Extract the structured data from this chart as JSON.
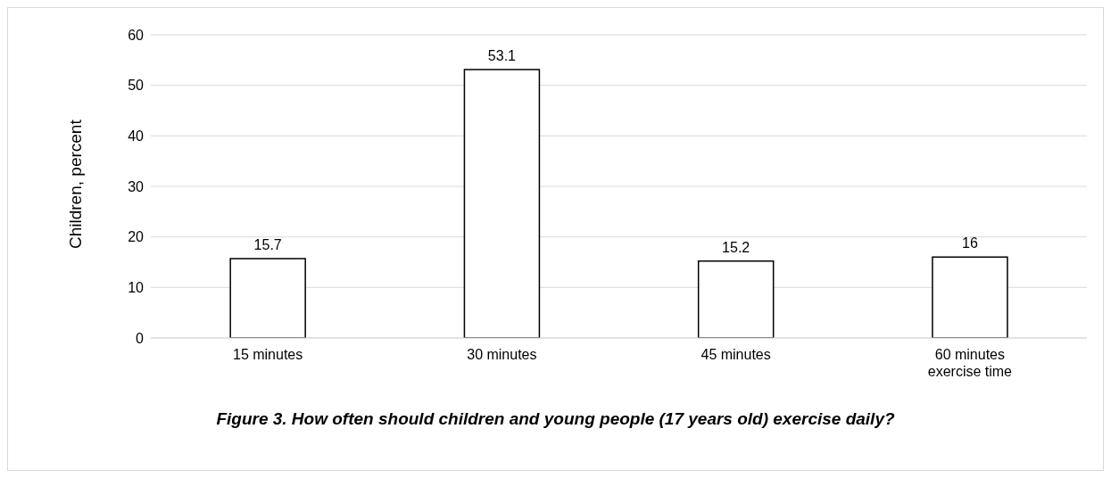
{
  "chart_data": {
    "type": "bar",
    "title": "Figure 3. How often should children and young people (17 years old) exercise daily?",
    "ylabel": "Children, percent",
    "categories": [
      "15 minutes",
      "30 minutes",
      "45 minutes",
      "60 minutes exercise time"
    ],
    "values": [
      15.7,
      53.1,
      15.2,
      16
    ],
    "color": "#ffffff",
    "ylim": [
      0,
      60
    ],
    "yticks": [
      0,
      10,
      20,
      30,
      40,
      50,
      60
    ],
    "grid": "y",
    "data_labels": true
  }
}
